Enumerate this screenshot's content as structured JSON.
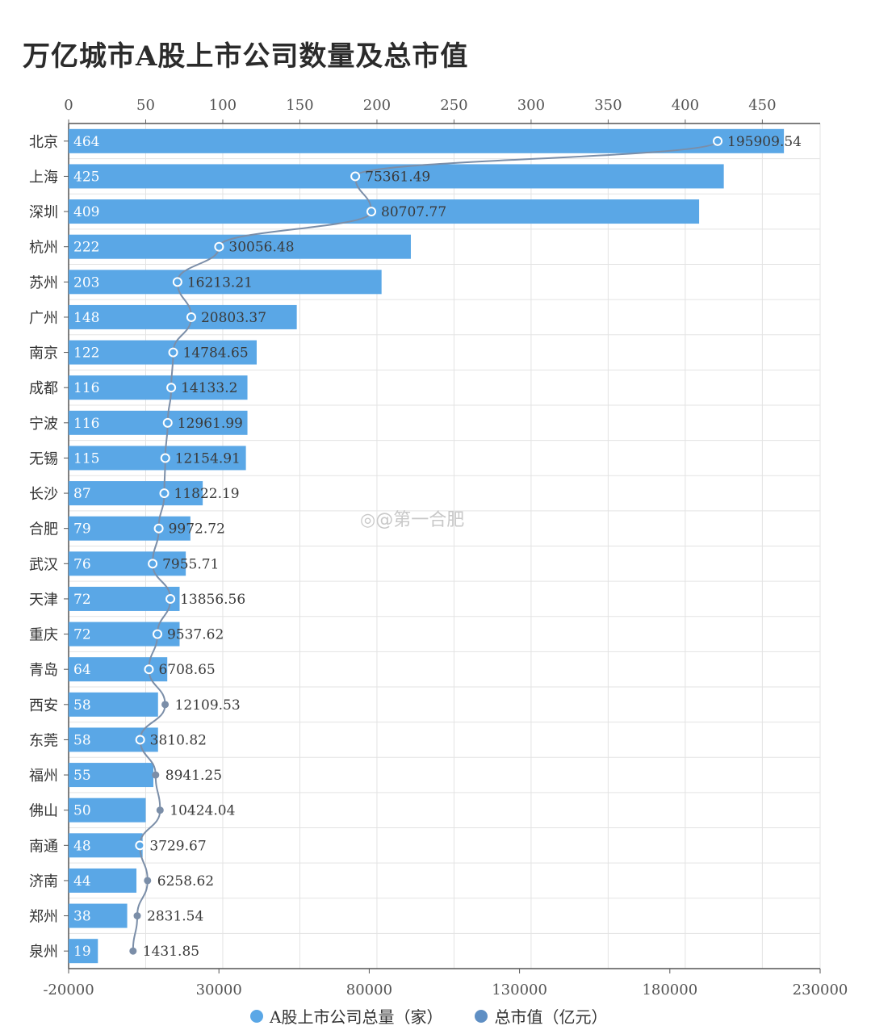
{
  "title": "万亿城市A股上市公司数量及总市值",
  "watermark": "◎@第一合肥",
  "colors": {
    "bar": "#5aa7e6",
    "line": "#7b8ea8",
    "grid": "#e3e3e3"
  },
  "legend": [
    {
      "label": "A股上市公司总量（家）",
      "color": "#5aa7e6"
    },
    {
      "label": "总市值（亿元）",
      "color": "#5f8fc4"
    }
  ],
  "chart_data": {
    "type": "bar",
    "orientation": "horizontal",
    "title": "万亿城市A股上市公司数量及总市值",
    "categories": [
      "北京",
      "上海",
      "深圳",
      "杭州",
      "苏州",
      "广州",
      "南京",
      "成都",
      "宁波",
      "无锡",
      "长沙",
      "合肥",
      "武汉",
      "天津",
      "重庆",
      "青岛",
      "西安",
      "东莞",
      "福州",
      "佛山",
      "南通",
      "济南",
      "郑州",
      "泉州"
    ],
    "series": [
      {
        "name": "A股上市公司总量（家）",
        "axis": "top",
        "values": [
          464,
          425,
          409,
          222,
          203,
          148,
          122,
          116,
          116,
          115,
          87,
          79,
          76,
          72,
          72,
          64,
          58,
          58,
          55,
          50,
          48,
          44,
          38,
          19
        ]
      },
      {
        "name": "总市值（亿元）",
        "axis": "bottom",
        "type": "line",
        "values": [
          195909.54,
          75361.49,
          80707.77,
          30056.48,
          16213.21,
          20803.37,
          14784.65,
          14133.2,
          12961.99,
          12154.91,
          11822.19,
          9972.72,
          7955.71,
          13856.56,
          9537.62,
          6708.65,
          12109.53,
          3810.82,
          8941.25,
          10424.04,
          3729.67,
          6258.62,
          2831.54,
          1431.85
        ],
        "labels": [
          "195909.54",
          "75361.49",
          "80707.77",
          "30056.48",
          "16213.21",
          "20803.37",
          "14784.65",
          "14133.2",
          "12961.99",
          "12154.91",
          "11822.19",
          "9972.72",
          "7955.71",
          "13856.56",
          "9537.62",
          "6708.65",
          "12109.53",
          "3810.82",
          "8941.25",
          "10424.04",
          "3729.67",
          "6258.62",
          "2831.54",
          "1431.85"
        ]
      }
    ],
    "top_axis": {
      "min": 0,
      "max": 487.5,
      "ticks": [
        "0",
        "50",
        "100",
        "150",
        "200",
        "250",
        "300",
        "350",
        "400",
        "450"
      ]
    },
    "bottom_axis": {
      "min": -20000,
      "max": 230000,
      "ticks": [
        "-20000",
        "30000",
        "80000",
        "130000",
        "180000",
        "230000"
      ]
    },
    "grid": true,
    "legend_position": "bottom"
  }
}
